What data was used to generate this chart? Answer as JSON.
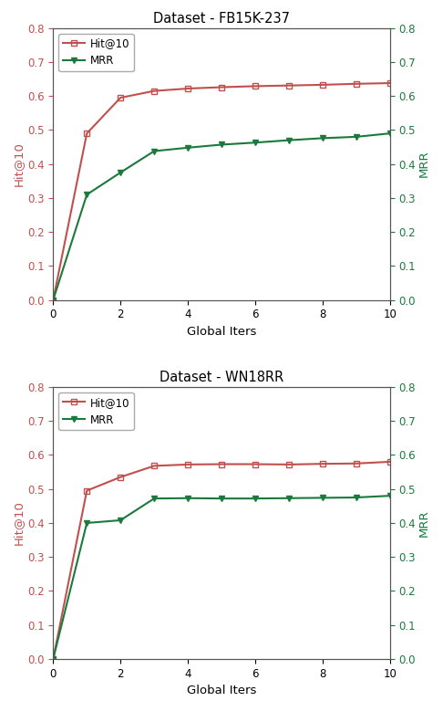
{
  "fb15k": {
    "title": "Dataset - FB15K-237",
    "x": [
      0,
      1,
      2,
      3,
      4,
      5,
      6,
      7,
      8,
      9,
      10
    ],
    "hit10": [
      0.0,
      0.49,
      0.595,
      0.615,
      0.622,
      0.626,
      0.629,
      0.631,
      0.633,
      0.636,
      0.638
    ],
    "mrr": [
      0.0,
      0.31,
      0.375,
      0.438,
      0.448,
      0.457,
      0.463,
      0.47,
      0.476,
      0.48,
      0.49
    ]
  },
  "wn18rr": {
    "title": "Dataset - WN18RR",
    "x": [
      0,
      1,
      2,
      3,
      4,
      5,
      6,
      7,
      8,
      9,
      10
    ],
    "hit10": [
      0.0,
      0.495,
      0.535,
      0.568,
      0.572,
      0.573,
      0.573,
      0.572,
      0.574,
      0.575,
      0.58
    ],
    "mrr": [
      0.0,
      0.4,
      0.408,
      0.472,
      0.473,
      0.472,
      0.472,
      0.473,
      0.474,
      0.475,
      0.48
    ]
  },
  "hit10_color": "#c0504d",
  "mrr_color": "#1a7a3c",
  "xlabel": "Global Iters",
  "ylabel_left": "Hit@10",
  "ylabel_right": "MRR",
  "ylim": [
    0.0,
    0.8
  ],
  "xlim": [
    0,
    10
  ],
  "yticks": [
    0.0,
    0.1,
    0.2,
    0.3,
    0.4,
    0.5,
    0.6,
    0.7,
    0.8
  ],
  "xticks": [
    0,
    2,
    4,
    6,
    8,
    10
  ]
}
